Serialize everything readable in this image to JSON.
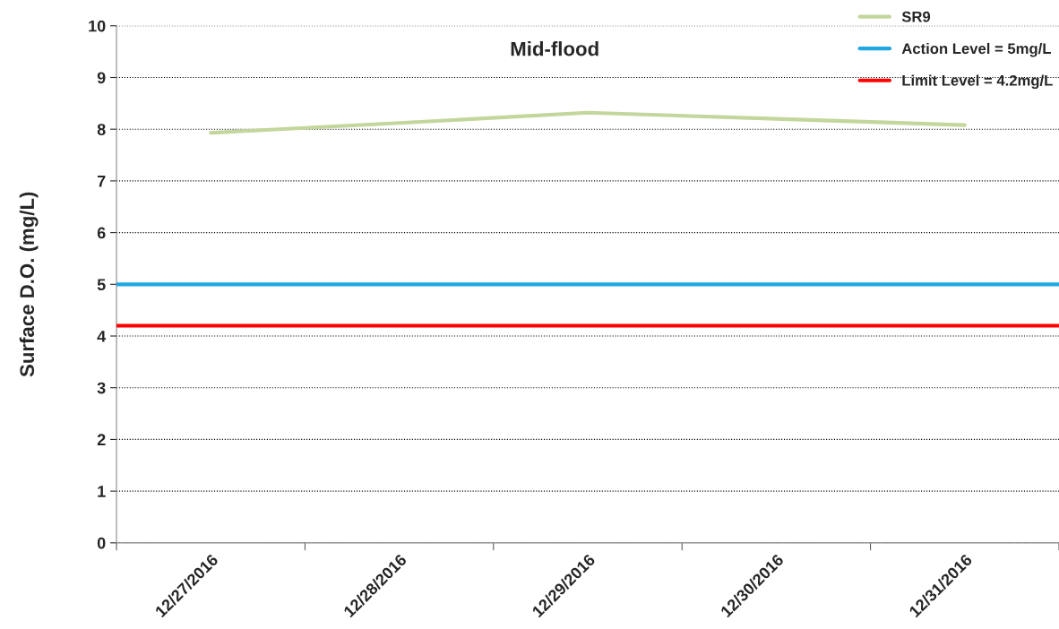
{
  "chart_data": {
    "type": "line",
    "title": "Mid-flood",
    "ylabel": "Surface D.O. (mg/L)",
    "categories": [
      "12/27/2016",
      "12/28/2016",
      "12/29/2016",
      "12/30/2016",
      "12/31/2016"
    ],
    "series": [
      {
        "name": "SR9",
        "color": "#c3d69b",
        "values": [
          7.93,
          8.12,
          8.32,
          8.2,
          8.08
        ]
      }
    ],
    "ref_lines": [
      {
        "axis": "y",
        "value": 5,
        "label": "Action Level = 5mg/L",
        "color": "#1fa8e0"
      },
      {
        "axis": "y",
        "value": 4.2,
        "label": "Limit Level = 4.2mg/L",
        "color": "#ff0000"
      }
    ],
    "ylim": [
      0,
      10
    ],
    "yticks": [
      0,
      1,
      2,
      3,
      4,
      5,
      6,
      7,
      8,
      9,
      10
    ],
    "grid": "y",
    "legend": "top right",
    "marker": "none",
    "line_style": "solid"
  }
}
